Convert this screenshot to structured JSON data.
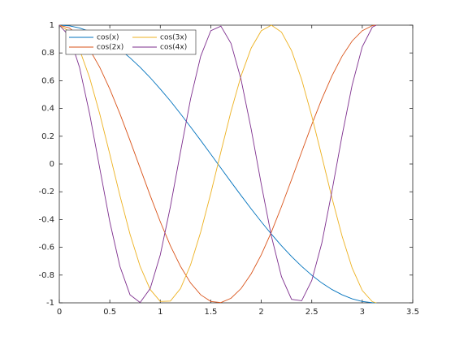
{
  "chart_data": {
    "type": "line",
    "x": [
      0,
      0.1,
      0.2,
      0.3,
      0.4,
      0.5,
      0.6,
      0.7,
      0.8,
      0.9,
      1.0,
      1.1,
      1.2,
      1.3,
      1.4,
      1.5,
      1.6,
      1.7,
      1.8,
      1.9,
      2.0,
      2.1,
      2.2,
      2.3,
      2.4,
      2.5,
      2.6,
      2.7,
      2.8,
      2.9,
      3.0,
      3.1,
      3.14
    ],
    "series": [
      {
        "name": "cos(x)",
        "color": "#0072bd",
        "values": [
          1,
          0.995,
          0.98,
          0.955,
          0.921,
          0.878,
          0.825,
          0.765,
          0.697,
          0.622,
          0.54,
          0.454,
          0.362,
          0.267,
          0.17,
          0.071,
          -0.029,
          -0.129,
          -0.227,
          -0.323,
          -0.416,
          -0.505,
          -0.589,
          -0.666,
          -0.737,
          -0.801,
          -0.857,
          -0.904,
          -0.942,
          -0.971,
          -0.99,
          -0.999,
          -1
        ]
      },
      {
        "name": "cos(2x)",
        "color": "#d95319",
        "values": [
          1,
          0.98,
          0.921,
          0.825,
          0.697,
          0.54,
          0.362,
          0.17,
          -0.029,
          -0.227,
          -0.416,
          -0.589,
          -0.737,
          -0.857,
          -0.942,
          -0.99,
          -0.998,
          -0.967,
          -0.897,
          -0.791,
          -0.654,
          -0.49,
          -0.307,
          -0.112,
          0.087,
          0.284,
          0.469,
          0.635,
          0.776,
          0.886,
          0.96,
          0.997,
          1
        ]
      },
      {
        "name": "cos(3x)",
        "color": "#edb120",
        "values": [
          1,
          0.955,
          0.825,
          0.622,
          0.362,
          0.071,
          -0.227,
          -0.505,
          -0.737,
          -0.904,
          -0.99,
          -0.987,
          -0.897,
          -0.726,
          -0.49,
          -0.211,
          0.087,
          0.378,
          0.635,
          0.835,
          0.96,
          1,
          0.95,
          0.816,
          0.608,
          0.346,
          0.054,
          -0.244,
          -0.519,
          -0.749,
          -0.911,
          -0.992,
          -1
        ]
      },
      {
        "name": "cos(4x)",
        "color": "#7e2f8e",
        "values": [
          1,
          0.921,
          0.697,
          0.362,
          -0.029,
          -0.416,
          -0.737,
          -0.942,
          -0.998,
          -0.897,
          -0.654,
          -0.307,
          0.087,
          0.469,
          0.776,
          0.96,
          0.993,
          0.869,
          0.608,
          0.251,
          -0.146,
          -0.519,
          -0.811,
          -0.975,
          -0.985,
          -0.839,
          -0.568,
          -0.195,
          0.204,
          0.569,
          0.844,
          0.986,
          1
        ]
      }
    ],
    "xlim": [
      0,
      3.5
    ],
    "xticks": [
      0,
      0.5,
      1,
      1.5,
      2,
      2.5,
      3,
      3.5
    ],
    "ylim": [
      -1,
      1
    ],
    "yticks": [
      -1,
      -0.8,
      -0.6,
      -0.4,
      -0.2,
      0,
      0.2,
      0.4,
      0.6,
      0.8,
      1
    ],
    "legend": "top-left",
    "legend_columns": 2
  }
}
